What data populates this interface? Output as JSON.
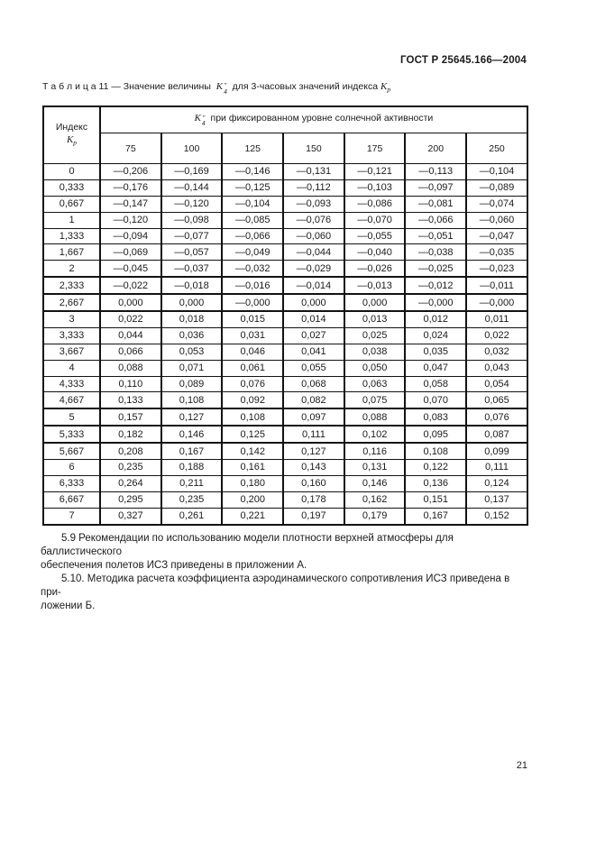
{
  "page": {
    "doc_header": "ГОСТ Р 25645.166—2004",
    "page_number": "21"
  },
  "table_caption": {
    "prefix": "Т а б л и ц а  11 — Значение величины",
    "k4": {
      "base": "K",
      "sup": "″",
      "sub": "4"
    },
    "suffix": "для 3-часовых значений индекса",
    "kp": {
      "base": "K",
      "sub": "p"
    }
  },
  "table": {
    "index_header": {
      "line1": "Индекс",
      "k": "K",
      "sub": "p"
    },
    "span_header": {
      "k": "K",
      "sup": "″",
      "sub": "4",
      "text": "при фиксированном уровне солнечной активности"
    },
    "level_columns": [
      "75",
      "100",
      "125",
      "150",
      "175",
      "200",
      "250"
    ],
    "rows": [
      [
        "0",
        "—0,206",
        "—0,169",
        "—0,146",
        "—0,131",
        "—0,121",
        "—0,113",
        "—0,104"
      ],
      [
        "0,333",
        "—0,176",
        "—0,144",
        "—0,125",
        "—0,112",
        "—0,103",
        "—0,097",
        "—0,089"
      ],
      [
        "0,667",
        "—0,147",
        "—0,120",
        "—0,104",
        "—0,093",
        "—0,086",
        "—0,081",
        "—0,074"
      ],
      [
        "1",
        "—0,120",
        "—0,098",
        "—0,085",
        "—0,076",
        "—0,070",
        "—0,066",
        "—0,060"
      ],
      [
        "1,333",
        "—0,094",
        "—0,077",
        "—0,066",
        "—0,060",
        "—0,055",
        "—0,051",
        "—0,047"
      ],
      [
        "1,667",
        "—0,069",
        "—0,057",
        "—0,049",
        "—0,044",
        "—0,040",
        "—0,038",
        "—0,035"
      ],
      [
        "2",
        "—0,045",
        "—0,037",
        "—0,032",
        "—0,029",
        "—0,026",
        "—0,025",
        "—0,023"
      ],
      [
        "2,333",
        "—0,022",
        "—0,018",
        "—0,016",
        "—0,014",
        "—0,013",
        "—0,012",
        "—0,011"
      ],
      [
        "2,667",
        "0,000",
        "0,000",
        "—0,000",
        "0,000",
        "0,000",
        "—0,000",
        "—0,000"
      ],
      [
        "3",
        "0,022",
        "0,018",
        "0,015",
        "0,014",
        "0,013",
        "0,012",
        "0,011"
      ],
      [
        "3,333",
        "0,044",
        "0,036",
        "0,031",
        "0,027",
        "0,025",
        "0,024",
        "0,022"
      ],
      [
        "3,667",
        "0,066",
        "0,053",
        "0,046",
        "0,041",
        "0,038",
        "0,035",
        "0,032"
      ],
      [
        "4",
        "0,088",
        "0,071",
        "0,061",
        "0,055",
        "0,050",
        "0,047",
        "0,043"
      ],
      [
        "4,333",
        "0,110",
        "0,089",
        "0,076",
        "0,068",
        "0,063",
        "0,058",
        "0,054"
      ],
      [
        "4,667",
        "0,133",
        "0,108",
        "0,092",
        "0,082",
        "0,075",
        "0,070",
        "0,065"
      ],
      [
        "5",
        "0,157",
        "0,127",
        "0,108",
        "0,097",
        "0,088",
        "0,083",
        "0,076"
      ],
      [
        "5,333",
        "0,182",
        "0,146",
        "0,125",
        "0,111",
        "0,102",
        "0,095",
        "0,087"
      ],
      [
        "5,667",
        "0,208",
        "0,167",
        "0,142",
        "0,127",
        "0,116",
        "0,108",
        "0,099"
      ],
      [
        "6",
        "0,235",
        "0,188",
        "0,161",
        "0,143",
        "0,131",
        "0,122",
        "0,111"
      ],
      [
        "6,333",
        "0,264",
        "0,211",
        "0,180",
        "0,160",
        "0,146",
        "0,136",
        "0,124"
      ],
      [
        "6,667",
        "0,295",
        "0,235",
        "0,200",
        "0,178",
        "0,162",
        "0,151",
        "0,137"
      ],
      [
        "7",
        "0,327",
        "0,261",
        "0,221",
        "0,197",
        "0,179",
        "0,167",
        "0,152"
      ]
    ]
  },
  "paragraphs": {
    "p59_line1": "5.9  Рекомендации по использованию модели плотности верхней атмосферы для баллистического",
    "p59_line2": "обеспечения полетов ИСЗ приведены в приложении А.",
    "p510_line1": "5.10.  Методика расчета коэффициента аэродинамического сопротивления ИСЗ приведена в при-",
    "p510_line2": "ложении Б."
  }
}
